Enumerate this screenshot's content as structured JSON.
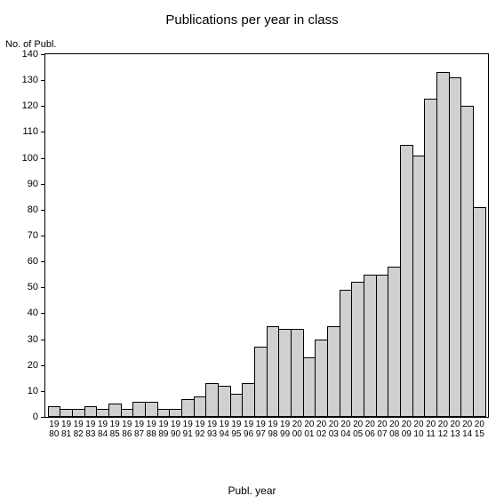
{
  "chart": {
    "type": "bar",
    "title": "Publications per year in class",
    "title_fontsize": 15,
    "ylabel": "No. of Publ.",
    "xlabel": "Publ. year",
    "label_fontsize": 11,
    "background_color": "#ffffff",
    "bar_fill_color": "#d0d0d0",
    "bar_border_color": "#000000",
    "axis_color": "#000000",
    "ylim": [
      0,
      140
    ],
    "ytick_step": 10,
    "yticks": [
      0,
      10,
      20,
      30,
      40,
      50,
      60,
      70,
      80,
      90,
      100,
      110,
      120,
      130,
      140
    ],
    "categories": [
      "1980",
      "1981",
      "1982",
      "1983",
      "1984",
      "1985",
      "1986",
      "1987",
      "1988",
      "1989",
      "1990",
      "1991",
      "1992",
      "1993",
      "1994",
      "1995",
      "1996",
      "1997",
      "1998",
      "1999",
      "2000",
      "2001",
      "2002",
      "2003",
      "2004",
      "2005",
      "2006",
      "2007",
      "2008",
      "2009",
      "2010",
      "2011",
      "2012",
      "2013",
      "2014",
      "2015"
    ],
    "values": [
      4,
      3,
      3,
      4,
      3,
      5,
      3,
      6,
      6,
      3,
      3,
      7,
      8,
      13,
      12,
      9,
      13,
      27,
      35,
      34,
      34,
      23,
      30,
      35,
      49,
      52,
      55,
      55,
      58,
      105,
      101,
      123,
      133,
      131,
      120,
      81
    ]
  }
}
